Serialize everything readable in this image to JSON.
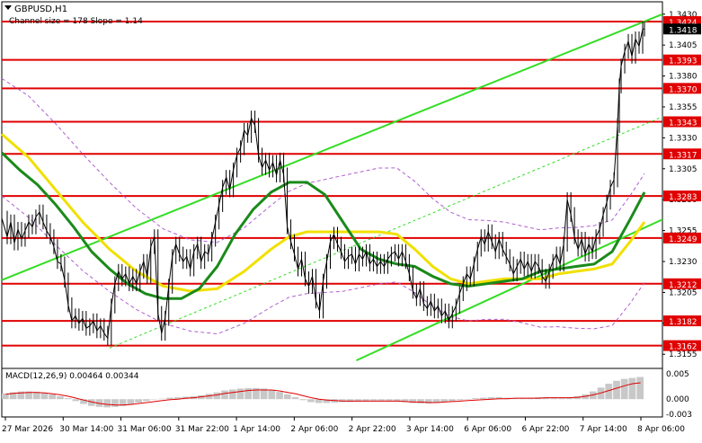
{
  "header": {
    "symbol": "GBPUSD,H1",
    "channel_info": "Channel size = 178 Slope = 1.14"
  },
  "macd": {
    "label": "MACD(12,26,9) 0.00464 0.00344",
    "ticks": [
      "0.005",
      "0.000",
      "-0.003"
    ]
  },
  "colors": {
    "level_line": "#e00000",
    "channel": "#33dd22",
    "ma_fast": "#1a8a1a",
    "ma_slow": "#f0e000",
    "price": "#000000",
    "bollinger": "#b060d0",
    "macd_hist": "#c8c8c8",
    "macd_signal": "#e00000",
    "current_price_bg": "#000000"
  },
  "chart_data": {
    "type": "line",
    "title": "GBPUSD,H1",
    "price_range": [
      1.3145,
      1.344
    ],
    "y_ticks": [
      1.3155,
      1.318,
      1.3205,
      1.323,
      1.3255,
      1.328,
      1.3305,
      1.333,
      1.3355,
      1.338,
      1.3405,
      1.343
    ],
    "y_tick_labels": [
      "1.3155",
      "1.3180",
      "1.3205",
      "1.3230",
      "1.3255",
      "1.3280",
      "1.3305",
      "1.3330",
      "1.3355",
      "1.3380",
      "1.3405",
      "1.3430"
    ],
    "levels": [
      {
        "label": "1.3424",
        "value": 1.3424
      },
      {
        "label": "1.3393",
        "value": 1.3393
      },
      {
        "label": "1.3370",
        "value": 1.337
      },
      {
        "label": "1.3343",
        "value": 1.3343
      },
      {
        "label": "1.3317",
        "value": 1.3317
      },
      {
        "label": "1.3283",
        "value": 1.3283
      },
      {
        "label": "1.3249",
        "value": 1.3249
      },
      {
        "label": "1.3212",
        "value": 1.3212
      },
      {
        "label": "1.3182",
        "value": 1.3182
      },
      {
        "label": "1.3162",
        "value": 1.3162
      }
    ],
    "current_price": {
      "label": "1.3418",
      "value": 1.3418
    },
    "x_labels": [
      "27 Mar 2026",
      "30 Mar 14:00",
      "31 Mar 06:00",
      "31 Mar 22:00",
      "1 Apr 14:00",
      "2 Apr 06:00",
      "2 Apr 22:00",
      "3 Apr 14:00",
      "6 Apr 06:00",
      "6 Apr 22:00",
      "7 Apr 14:00",
      "8 Apr 06:00"
    ],
    "price_series": [
      [
        0,
        1.3265
      ],
      [
        6,
        1.325
      ],
      [
        10,
        1.3262
      ],
      [
        14,
        1.3245
      ],
      [
        18,
        1.3256
      ],
      [
        22,
        1.3248
      ],
      [
        26,
        1.3255
      ],
      [
        30,
        1.3262
      ],
      [
        34,
        1.3258
      ],
      [
        38,
        1.3266
      ],
      [
        42,
        1.327
      ],
      [
        46,
        1.3262
      ],
      [
        50,
        1.3255
      ],
      [
        54,
        1.325
      ],
      [
        58,
        1.3242
      ],
      [
        62,
        1.323
      ],
      [
        66,
        1.3228
      ],
      [
        70,
        1.3215
      ],
      [
        74,
        1.3195
      ],
      [
        78,
        1.3182
      ],
      [
        82,
        1.3186
      ],
      [
        86,
        1.318
      ],
      [
        90,
        1.3184
      ],
      [
        94,
        1.3176
      ],
      [
        98,
        1.3178
      ],
      [
        102,
        1.3182
      ],
      [
        106,
        1.3174
      ],
      [
        110,
        1.3178
      ],
      [
        114,
        1.3172
      ],
      [
        118,
        1.3168
      ],
      [
        122,
        1.3194
      ],
      [
        126,
        1.3212
      ],
      [
        130,
        1.3222
      ],
      [
        134,
        1.3216
      ],
      [
        138,
        1.322
      ],
      [
        142,
        1.3212
      ],
      [
        146,
        1.3218
      ],
      [
        150,
        1.3212
      ],
      [
        154,
        1.3222
      ],
      [
        158,
        1.323
      ],
      [
        162,
        1.3218
      ],
      [
        166,
        1.3242
      ],
      [
        170,
        1.325
      ],
      [
        174,
        1.3188
      ],
      [
        178,
        1.3172
      ],
      [
        182,
        1.3184
      ],
      [
        186,
        1.321
      ],
      [
        190,
        1.3234
      ],
      [
        194,
        1.3244
      ],
      [
        198,
        1.3236
      ],
      [
        202,
        1.323
      ],
      [
        206,
        1.3234
      ],
      [
        210,
        1.3224
      ],
      [
        214,
        1.3238
      ],
      [
        218,
        1.3244
      ],
      [
        222,
        1.323
      ],
      [
        226,
        1.3238
      ],
      [
        230,
        1.3236
      ],
      [
        234,
        1.3248
      ],
      [
        238,
        1.3262
      ],
      [
        242,
        1.3276
      ],
      [
        246,
        1.329
      ],
      [
        250,
        1.3298
      ],
      [
        254,
        1.3288
      ],
      [
        258,
        1.3304
      ],
      [
        262,
        1.3316
      ],
      [
        266,
        1.3322
      ],
      [
        270,
        1.3336
      ],
      [
        274,
        1.3332
      ],
      [
        278,
        1.3346
      ],
      [
        282,
        1.334
      ],
      [
        286,
        1.3316
      ],
      [
        290,
        1.3306
      ],
      [
        294,
        1.3312
      ],
      [
        298,
        1.3304
      ],
      [
        302,
        1.331
      ],
      [
        306,
        1.33
      ],
      [
        310,
        1.3312
      ],
      [
        314,
        1.33
      ],
      [
        318,
        1.3258
      ],
      [
        322,
        1.3246
      ],
      [
        326,
        1.3236
      ],
      [
        330,
        1.3224
      ],
      [
        334,
        1.3232
      ],
      [
        338,
        1.3216
      ],
      [
        342,
        1.321
      ],
      [
        346,
        1.3218
      ],
      [
        350,
        1.3198
      ],
      [
        354,
        1.319
      ],
      [
        358,
        1.3214
      ],
      [
        362,
        1.323
      ],
      [
        366,
        1.3246
      ],
      [
        370,
        1.3252
      ],
      [
        374,
        1.3244
      ],
      [
        378,
        1.3238
      ],
      [
        382,
        1.323
      ],
      [
        386,
        1.3234
      ],
      [
        390,
        1.3236
      ],
      [
        394,
        1.3228
      ],
      [
        398,
        1.3236
      ],
      [
        402,
        1.3232
      ],
      [
        406,
        1.3238
      ],
      [
        410,
        1.3228
      ],
      [
        414,
        1.3232
      ],
      [
        418,
        1.3226
      ],
      [
        422,
        1.323
      ],
      [
        426,
        1.3226
      ],
      [
        430,
        1.3232
      ],
      [
        434,
        1.3236
      ],
      [
        438,
        1.3238
      ],
      [
        442,
        1.3232
      ],
      [
        446,
        1.3238
      ],
      [
        450,
        1.323
      ],
      [
        454,
        1.322
      ],
      [
        458,
        1.3206
      ],
      [
        462,
        1.32
      ],
      [
        466,
        1.3208
      ],
      [
        470,
        1.3196
      ],
      [
        474,
        1.3192
      ],
      [
        478,
        1.3198
      ],
      [
        482,
        1.319
      ],
      [
        486,
        1.3194
      ],
      [
        490,
        1.3186
      ],
      [
        494,
        1.319
      ],
      [
        498,
        1.3182
      ],
      [
        502,
        1.3188
      ],
      [
        506,
        1.3194
      ],
      [
        510,
        1.3204
      ],
      [
        514,
        1.3212
      ],
      [
        518,
        1.322
      ],
      [
        522,
        1.3216
      ],
      [
        526,
        1.3228
      ],
      [
        530,
        1.324
      ],
      [
        534,
        1.325
      ],
      [
        538,
        1.3244
      ],
      [
        542,
        1.3254
      ],
      [
        546,
        1.3246
      ],
      [
        550,
        1.3238
      ],
      [
        554,
        1.3248
      ],
      [
        558,
        1.324
      ],
      [
        562,
        1.3234
      ],
      [
        566,
        1.3228
      ],
      [
        570,
        1.322
      ],
      [
        574,
        1.3226
      ],
      [
        578,
        1.3232
      ],
      [
        582,
        1.3224
      ],
      [
        586,
        1.323
      ],
      [
        590,
        1.3222
      ],
      [
        594,
        1.323
      ],
      [
        598,
        1.3226
      ],
      [
        602,
        1.3218
      ],
      [
        606,
        1.3214
      ],
      [
        610,
        1.3222
      ],
      [
        614,
        1.323
      ],
      [
        618,
        1.3236
      ],
      [
        622,
        1.3228
      ],
      [
        626,
        1.3244
      ],
      [
        630,
        1.328
      ],
      [
        634,
        1.3268
      ],
      [
        638,
        1.325
      ],
      [
        642,
        1.324
      ],
      [
        646,
        1.3248
      ],
      [
        650,
        1.3236
      ],
      [
        654,
        1.3244
      ],
      [
        658,
        1.3238
      ],
      [
        662,
        1.325
      ],
      [
        666,
        1.3256
      ],
      [
        670,
        1.3268
      ],
      [
        674,
        1.3278
      ],
      [
        678,
        1.329
      ],
      [
        682,
        1.3296
      ],
      [
        686,
        1.334
      ],
      [
        688,
        1.3372
      ],
      [
        690,
        1.3388
      ],
      [
        694,
        1.34
      ],
      [
        698,
        1.3408
      ],
      [
        702,
        1.3396
      ],
      [
        706,
        1.341
      ],
      [
        710,
        1.3404
      ],
      [
        714,
        1.3418
      ],
      [
        716,
        1.3418
      ]
    ],
    "ma_fast_series": [
      [
        0,
        1.3318
      ],
      [
        20,
        1.3304
      ],
      [
        40,
        1.3292
      ],
      [
        60,
        1.3276
      ],
      [
        80,
        1.3258
      ],
      [
        100,
        1.3238
      ],
      [
        120,
        1.3224
      ],
      [
        140,
        1.3212
      ],
      [
        160,
        1.3204
      ],
      [
        180,
        1.32
      ],
      [
        200,
        1.32
      ],
      [
        220,
        1.3208
      ],
      [
        240,
        1.3226
      ],
      [
        260,
        1.3252
      ],
      [
        280,
        1.3272
      ],
      [
        300,
        1.3286
      ],
      [
        310,
        1.329
      ],
      [
        320,
        1.3294
      ],
      [
        340,
        1.3294
      ],
      [
        360,
        1.3284
      ],
      [
        380,
        1.3262
      ],
      [
        400,
        1.324
      ],
      [
        420,
        1.3232
      ],
      [
        440,
        1.3228
      ],
      [
        460,
        1.3226
      ],
      [
        480,
        1.3218
      ],
      [
        500,
        1.3212
      ],
      [
        520,
        1.321
      ],
      [
        540,
        1.3212
      ],
      [
        560,
        1.3214
      ],
      [
        580,
        1.3216
      ],
      [
        600,
        1.3222
      ],
      [
        620,
        1.3224
      ],
      [
        640,
        1.3226
      ],
      [
        660,
        1.3228
      ],
      [
        680,
        1.3238
      ],
      [
        700,
        1.3264
      ],
      [
        716,
        1.3286
      ]
    ],
    "ma_slow_series": [
      [
        0,
        1.3333
      ],
      [
        30,
        1.3314
      ],
      [
        60,
        1.3288
      ],
      [
        90,
        1.3262
      ],
      [
        120,
        1.324
      ],
      [
        150,
        1.3222
      ],
      [
        180,
        1.321
      ],
      [
        210,
        1.3206
      ],
      [
        240,
        1.3208
      ],
      [
        270,
        1.3222
      ],
      [
        300,
        1.324
      ],
      [
        320,
        1.325
      ],
      [
        340,
        1.3254
      ],
      [
        380,
        1.3254
      ],
      [
        420,
        1.3254
      ],
      [
        440,
        1.3252
      ],
      [
        460,
        1.324
      ],
      [
        480,
        1.3226
      ],
      [
        500,
        1.3216
      ],
      [
        520,
        1.3212
      ],
      [
        540,
        1.3214
      ],
      [
        560,
        1.3216
      ],
      [
        580,
        1.3216
      ],
      [
        600,
        1.3216
      ],
      [
        620,
        1.322
      ],
      [
        640,
        1.3222
      ],
      [
        660,
        1.3224
      ],
      [
        680,
        1.3228
      ],
      [
        700,
        1.3246
      ],
      [
        716,
        1.3262
      ]
    ],
    "macd_histogram_range": [
      -0.0035,
      0.006
    ],
    "macd_histogram": [
      0.0012,
      0.0014,
      0.0016,
      0.0016,
      0.0015,
      0.0013,
      0.001,
      0.0006,
      0.0002,
      -0.0004,
      -0.001,
      -0.0014,
      -0.0016,
      -0.0017,
      -0.0016,
      -0.0014,
      -0.0011,
      -0.0007,
      -0.0004,
      -0.0001,
      0.0001,
      0.0003,
      0.0004,
      0.0005,
      0.0006,
      0.0008,
      0.0011,
      0.0014,
      0.0018,
      0.002,
      0.0022,
      0.0023,
      0.0023,
      0.0022,
      0.0019,
      0.0015,
      0.001,
      0.0004,
      -0.0002,
      -0.0006,
      -0.0008,
      -0.0008,
      -0.0007,
      -0.0006,
      -0.0006,
      -0.0005,
      -0.0004,
      -0.0003,
      -0.0003,
      -0.0003,
      -0.0004,
      -0.0006,
      -0.0008,
      -0.0009,
      -0.0009,
      -0.0008,
      -0.0006,
      -0.0004,
      -0.0002,
      0.0,
      0.0002,
      0.0003,
      0.0004,
      0.0004,
      0.0003,
      0.0002,
      0.0002,
      0.0003,
      0.0004,
      0.0004,
      0.0003,
      0.0003,
      0.0004,
      0.0006,
      0.001,
      0.0016,
      0.0024,
      0.0032,
      0.0038,
      0.0042,
      0.0044,
      0.0046
    ],
    "macd_signal": [
      0.001,
      0.0012,
      0.0013,
      0.0014,
      0.0014,
      0.0013,
      0.0011,
      0.0009,
      0.0006,
      0.0002,
      -0.0002,
      -0.0006,
      -0.0009,
      -0.0011,
      -0.0012,
      -0.0012,
      -0.0011,
      -0.0009,
      -0.0007,
      -0.0005,
      -0.0003,
      -0.0001,
      0.0,
      0.0002,
      0.0003,
      0.0005,
      0.0007,
      0.0009,
      0.0012,
      0.0014,
      0.0016,
      0.0018,
      0.0019,
      0.0019,
      0.0019,
      0.0017,
      0.0014,
      0.0011,
      0.0007,
      0.0003,
      0.0,
      -0.0002,
      -0.0003,
      -0.0004,
      -0.0004,
      -0.0004,
      -0.0004,
      -0.0004,
      -0.0004,
      -0.0004,
      -0.0004,
      -0.0005,
      -0.0006,
      -0.0006,
      -0.0007,
      -0.0007,
      -0.0006,
      -0.0005,
      -0.0004,
      -0.0003,
      -0.0002,
      -0.0001,
      0.0,
      0.0001,
      0.0001,
      0.0002,
      0.0002,
      0.0002,
      0.0002,
      0.0003,
      0.0003,
      0.0003,
      0.0003,
      0.0004,
      0.0006,
      0.0009,
      0.0013,
      0.0018,
      0.0023,
      0.0028,
      0.0032,
      0.0034
    ]
  }
}
